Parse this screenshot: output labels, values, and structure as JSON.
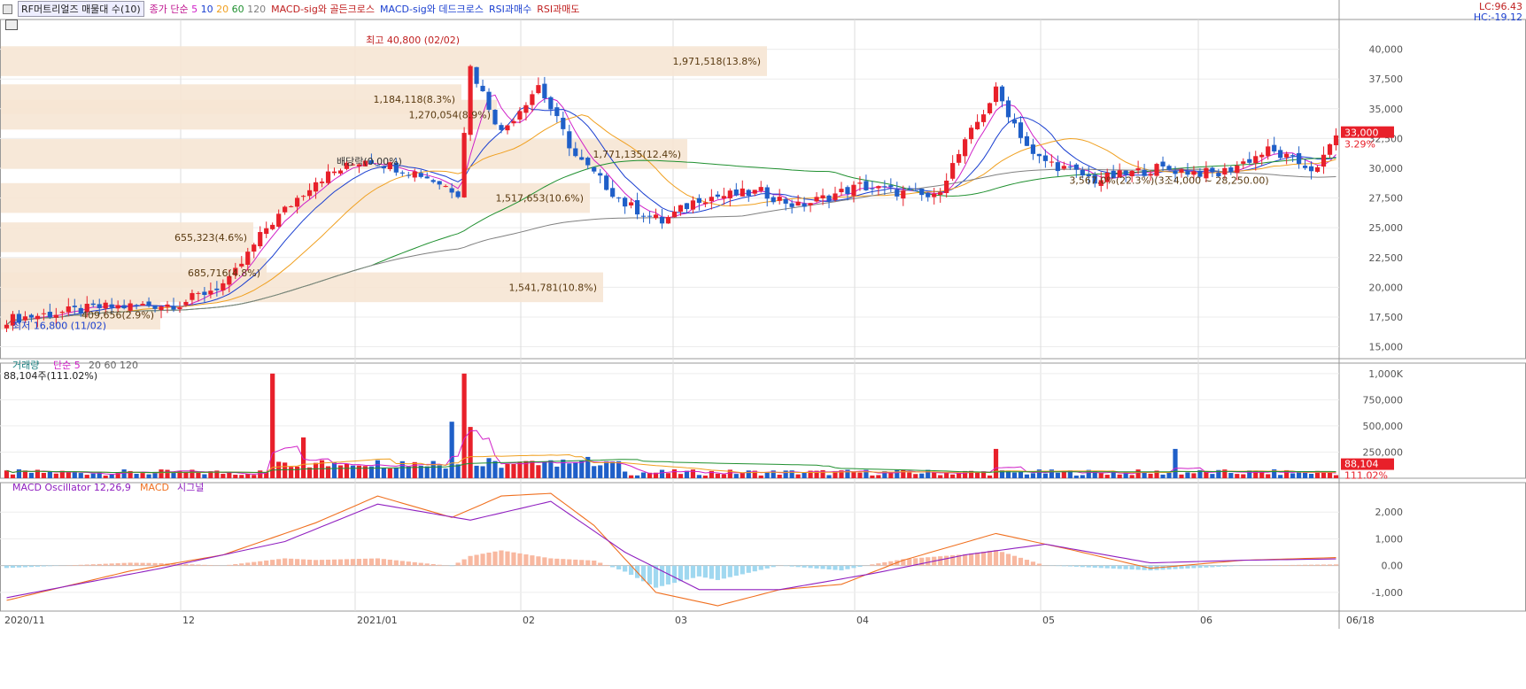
{
  "header": {
    "name": "RF머트리얼즈 매물대 수(10)",
    "ma_label": "종가 단순",
    "ma_periods": [
      "5",
      "10",
      "20",
      "60",
      "120"
    ],
    "sig_gold": "MACD-sig와 골든크로스",
    "sig_dead": "MACD-sig와 데드크로스",
    "rsi_buy": "RSI과매수",
    "rsi_sell": "RSI과매도",
    "lc": "LC:96.43",
    "hc": "HC:-19.12"
  },
  "colors": {
    "up": "#e8202a",
    "down": "#1f5fc8",
    "ma5": "#d020c8",
    "ma10": "#1a3fd0",
    "ma20": "#f0a020",
    "ma60": "#209030",
    "ma120": "#808080",
    "band": "#f6e6d4",
    "macd": "#9020c0",
    "signal": "#f07020",
    "hist_pos": "#f8b8a0",
    "hist_neg": "#a0d8f0"
  },
  "price_panel": {
    "yticks": [
      "40,000",
      "37,500",
      "35,000",
      "32,500",
      "30,000",
      "27,500",
      "25,000",
      "22,500",
      "20,000",
      "17,500",
      "15,000"
    ],
    "high_label": "최고 40,800 (02/02)",
    "low_label": "최저 16,800 (11/02)",
    "dividend_label": "배당락(0.00%)",
    "current_price": "33,000",
    "current_change": "3.29%",
    "range_label": "3,567.0%(22.3%)(3조4,000 ~ 28,250.00)",
    "volume_profile": [
      {
        "label": "1,971,518(13.8%)"
      },
      {
        "label": "1,184,118(8.3%)"
      },
      {
        "label": "1,270,054(8.9%)"
      },
      {
        "label": "1,771,135(12.4%)"
      },
      {
        "label": "1,517,653(10.6%)"
      },
      {
        "label": "655,323(4.6%)"
      },
      {
        "label": "685,716(4.8%)"
      },
      {
        "label": "1,541,781(10.8%)"
      },
      {
        "label": "409,656(2.9%)"
      }
    ]
  },
  "volume_panel": {
    "title": "거래량",
    "ma_label": "단순 5",
    "ma_rest": [
      "20",
      "60",
      "120"
    ],
    "current": "88,104주(111.02%)",
    "yticks": [
      "1,000K",
      "750,000",
      "500,000",
      "250,000"
    ],
    "badge_value": "88,104",
    "badge_pct": "111.02%"
  },
  "macd_panel": {
    "title": "MACD Oscillator 12,26,9",
    "macd_label": "MACD",
    "signal_label": "시그널",
    "yticks": [
      "2,000",
      "1,000",
      "0.00",
      "-1,000"
    ]
  },
  "xaxis": {
    "labels": [
      "2020/11",
      "12",
      "2021/01",
      "02",
      "03",
      "04",
      "05",
      "06",
      "06/18"
    ]
  },
  "chart_data": {
    "type": "candlestick",
    "period": "daily",
    "x_start": "2020/11",
    "x_end": "06/18",
    "price_ylim": [
      14000,
      42500
    ],
    "volume_ylim": [
      0,
      1100000
    ],
    "macd_ylim": [
      -1700,
      3100
    ],
    "price_high": {
      "value": 40800,
      "date": "02/02"
    },
    "price_low": {
      "value": 16800,
      "date": "11/02"
    },
    "last_close": 33000,
    "last_change_pct": 3.29,
    "last_volume": 88104,
    "last_volume_pct": 111.02,
    "key_points": [
      [
        0,
        17300
      ],
      [
        15,
        18300
      ],
      [
        28,
        18600
      ],
      [
        36,
        20500
      ],
      [
        42,
        25000
      ],
      [
        50,
        29000
      ],
      [
        58,
        30800
      ],
      [
        67,
        29500
      ],
      [
        73,
        28000
      ],
      [
        75,
        38500
      ],
      [
        80,
        33000
      ],
      [
        86,
        37000
      ],
      [
        92,
        31000
      ],
      [
        100,
        27000
      ],
      [
        106,
        25500
      ],
      [
        112,
        27500
      ],
      [
        122,
        28000
      ],
      [
        128,
        26800
      ],
      [
        138,
        28500
      ],
      [
        150,
        27500
      ],
      [
        156,
        33000
      ],
      [
        160,
        36500
      ],
      [
        166,
        31000
      ],
      [
        176,
        29000
      ],
      [
        186,
        30000
      ],
      [
        196,
        29500
      ],
      [
        204,
        31500
      ],
      [
        212,
        29800
      ],
      [
        215,
        33000
      ]
    ],
    "macd_key_points": [
      [
        0,
        -1300
      ],
      [
        20,
        -200
      ],
      [
        35,
        400
      ],
      [
        50,
        1600
      ],
      [
        60,
        2600
      ],
      [
        72,
        1800
      ],
      [
        80,
        2600
      ],
      [
        88,
        2700
      ],
      [
        95,
        1500
      ],
      [
        105,
        -1000
      ],
      [
        115,
        -1500
      ],
      [
        125,
        -900
      ],
      [
        135,
        -700
      ],
      [
        145,
        200
      ],
      [
        160,
        1200
      ],
      [
        172,
        600
      ],
      [
        185,
        -100
      ],
      [
        200,
        200
      ],
      [
        215,
        300
      ]
    ],
    "signal_key_points": [
      [
        0,
        -1200
      ],
      [
        25,
        -100
      ],
      [
        45,
        900
      ],
      [
        60,
        2300
      ],
      [
        75,
        1700
      ],
      [
        88,
        2400
      ],
      [
        100,
        500
      ],
      [
        112,
        -900
      ],
      [
        125,
        -900
      ],
      [
        140,
        -300
      ],
      [
        155,
        400
      ],
      [
        168,
        800
      ],
      [
        185,
        100
      ],
      [
        200,
        200
      ],
      [
        215,
        250
      ]
    ]
  }
}
